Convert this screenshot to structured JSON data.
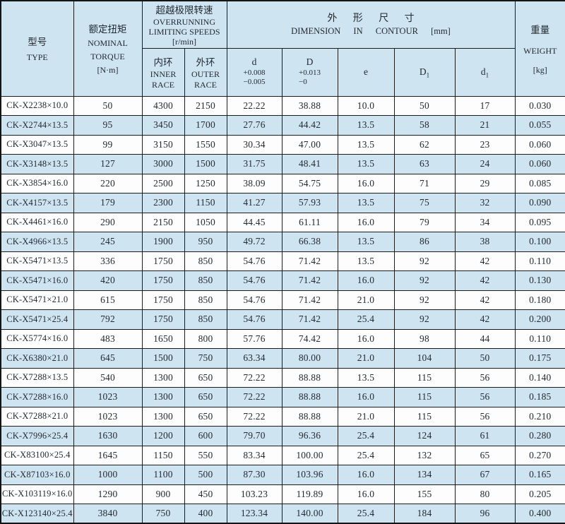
{
  "colors": {
    "row_alt_blue": "#cfe4f1",
    "row_base_white": "#fdfdfd",
    "grid_border": "#1c1c1c",
    "text": "#232a31"
  },
  "header": {
    "type_cn": "型号",
    "type_en": "TYPE",
    "torque_cn": "额定扭矩",
    "torque_en_line1": "NOMINAL",
    "torque_en_line2": "TORQUE",
    "torque_unit": "[N·m]",
    "speeds_cn": "超越极限转速",
    "speeds_en_line1": "OVERRUNNING",
    "speeds_en_line2": "LIMITING SPEEDS",
    "speeds_unit": "[r/min]",
    "inner_cn": "内环",
    "inner_en_line1": "INNER",
    "inner_en_line2": "RACE",
    "outer_cn": "外环",
    "outer_en_line1": "OUTER",
    "outer_en_line2": "RACE",
    "dimension_cn": "外形尺寸",
    "dimension_en": "DIMENSION IN CONTOUR",
    "dimension_unit": "[mm]",
    "d_label": "d",
    "d_tol_upper": "+0.008",
    "d_tol_lower": "−0.005",
    "D_label": "D",
    "D_tol_upper": "+0.013",
    "D_tol_lower": "−0",
    "e_label": "e",
    "D1_base": "D",
    "D1_sub": "1",
    "d1_base": "d",
    "d1_sub": "1",
    "weight_cn": "重量",
    "weight_en": "WEIGHT",
    "weight_unit": "[kg]"
  },
  "rows": [
    [
      "CK-X2238×10.0",
      "50",
      "4300",
      "2150",
      "22.22",
      "38.88",
      "10.0",
      "50",
      "17",
      "0.030"
    ],
    [
      "CK-X2744×13.5",
      "95",
      "3450",
      "1700",
      "27.76",
      "44.42",
      "13.5",
      "58",
      "21",
      "0.055"
    ],
    [
      "CK-X3047×13.5",
      "99",
      "3150",
      "1550",
      "30.34",
      "47.00",
      "13.5",
      "62",
      "23",
      "0.060"
    ],
    [
      "CK-X3148×13.5",
      "127",
      "3000",
      "1500",
      "31.75",
      "48.41",
      "13.5",
      "63",
      "24",
      "0.060"
    ],
    [
      "CK-X3854×16.0",
      "220",
      "2500",
      "1250",
      "38.09",
      "54.75",
      "16.0",
      "71",
      "29",
      "0.085"
    ],
    [
      "CK-X4157×13.5",
      "179",
      "2300",
      "1150",
      "41.27",
      "57.93",
      "13.5",
      "75",
      "32",
      "0.090"
    ],
    [
      "CK-X4461×16.0",
      "290",
      "2150",
      "1050",
      "44.45",
      "61.11",
      "16.0",
      "79",
      "34",
      "0.095"
    ],
    [
      "CK-X4966×13.5",
      "245",
      "1900",
      "950",
      "49.72",
      "66.38",
      "13.5",
      "86",
      "38",
      "0.100"
    ],
    [
      "CK-X5471×13.5",
      "336",
      "1750",
      "850",
      "54.76",
      "71.42",
      "13.5",
      "92",
      "42",
      "0.110"
    ],
    [
      "CK-X5471×16.0",
      "420",
      "1750",
      "850",
      "54.76",
      "71.42",
      "16.0",
      "92",
      "42",
      "0.130"
    ],
    [
      "CK-X5471×21.0",
      "615",
      "1750",
      "850",
      "54.76",
      "71.42",
      "21.0",
      "92",
      "42",
      "0.180"
    ],
    [
      "CK-X5471×25.4",
      "792",
      "1750",
      "850",
      "54.76",
      "71.42",
      "25.4",
      "92",
      "42",
      "0.200"
    ],
    [
      "CK-X5774×16.0",
      "483",
      "1650",
      "800",
      "57.76",
      "74.42",
      "16.0",
      "98",
      "44",
      "0.110"
    ],
    [
      "CK-X6380×21.0",
      "645",
      "1500",
      "750",
      "63.34",
      "80.00",
      "21.0",
      "104",
      "50",
      "0.175"
    ],
    [
      "CK-X7288×13.5",
      "540",
      "1300",
      "650",
      "72.22",
      "88.88",
      "13.5",
      "115",
      "56",
      "0.140"
    ],
    [
      "CK-X7288×16.0",
      "1023",
      "1300",
      "650",
      "72.22",
      "88.88",
      "16.0",
      "115",
      "56",
      "0.185"
    ],
    [
      "CK-X7288×21.0",
      "1023",
      "1300",
      "650",
      "72.22",
      "88.88",
      "21.0",
      "115",
      "56",
      "0.210"
    ],
    [
      "CK-X7996×25.4",
      "1630",
      "1200",
      "600",
      "79.70",
      "96.36",
      "25.4",
      "124",
      "61",
      "0.280"
    ],
    [
      "CK-X83100×25.4",
      "1645",
      "1150",
      "550",
      "83.34",
      "100.00",
      "25.4",
      "132",
      "65",
      "0.270"
    ],
    [
      "CK-X87103×16.0",
      "1000",
      "1100",
      "500",
      "87.30",
      "103.96",
      "16.0",
      "134",
      "67",
      "0.165"
    ],
    [
      "CK-X103119×16.0",
      "1290",
      "900",
      "450",
      "103.23",
      "119.89",
      "16.0",
      "155",
      "80",
      "0.205"
    ],
    [
      "CK-X123140×25.4",
      "3840",
      "750",
      "400",
      "123.34",
      "140.00",
      "25.4",
      "184",
      "96",
      "0.400"
    ]
  ]
}
